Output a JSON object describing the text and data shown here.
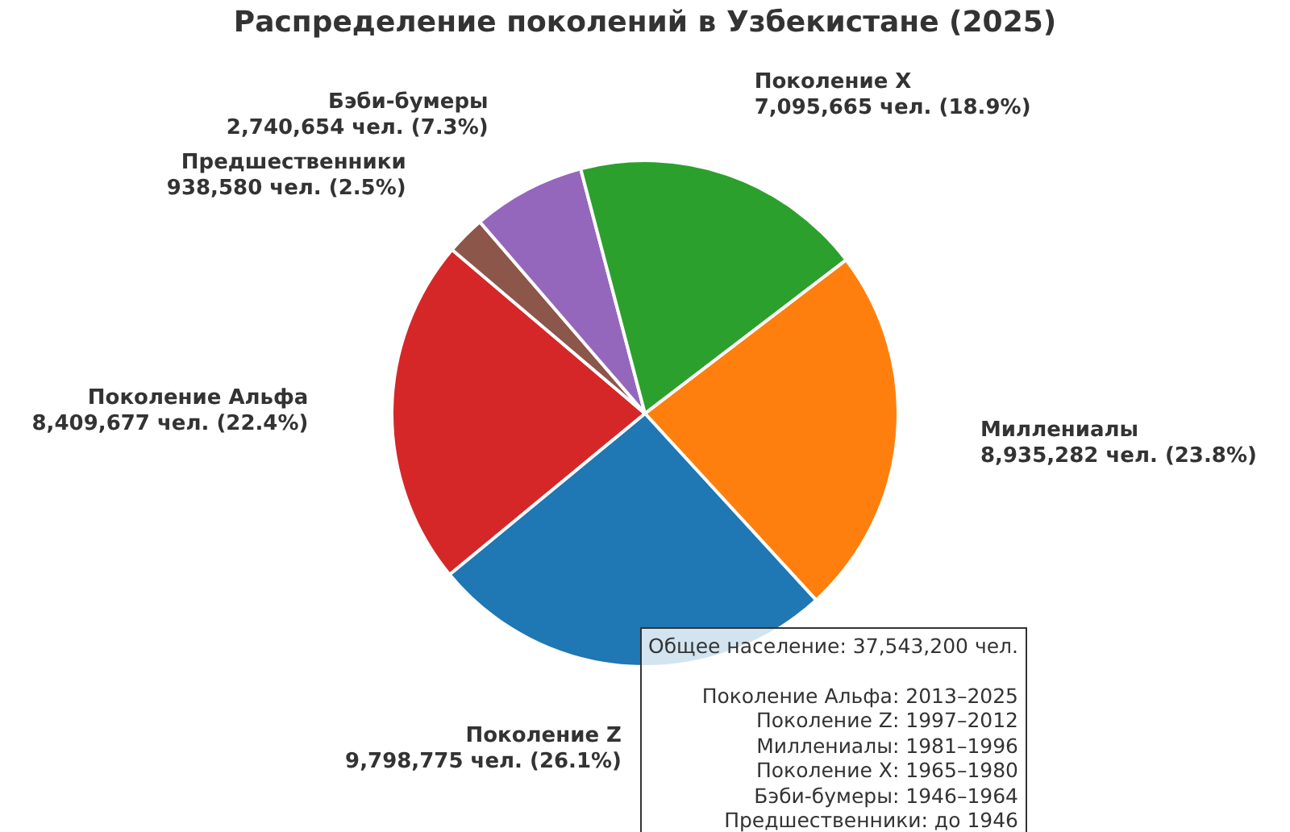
{
  "chart_data": {
    "type": "pie",
    "title": "Распределение поколений в Узбекистане (2025)",
    "categories": [
      "Поколение Альфа",
      "Предшественники",
      "Бэби-бумеры",
      "Поколение X",
      "Миллениалы",
      "Поколение Z"
    ],
    "values": [
      8409677,
      938580,
      2740654,
      7095665,
      8935282,
      9798775
    ],
    "value_labels": [
      "8,409,677 чел. (22.4%)",
      "938,580 чел. (2.5%)",
      "2,740,654 чел. (7.3%)",
      "7,095,665 чел. (18.9%)",
      "8,935,282 чел. (23.8%)",
      "9,798,775 чел. (26.1%)"
    ],
    "colors": [
      "#d62728",
      "#8c564b",
      "#9467bd",
      "#2ca02c",
      "#ff7f0e",
      "#1f77b4"
    ],
    "annotations": [
      "Общее население: 37,543,200 чел.",
      "Поколение Альфа: 2013–2025",
      "Поколение Z: 1997–2012",
      "Миллениалы: 1981–1996",
      "Поколение X: 1965–1980",
      "Бэби-бумеры: 1946–1964",
      "Предшественники: до 1946"
    ],
    "legend": false
  }
}
